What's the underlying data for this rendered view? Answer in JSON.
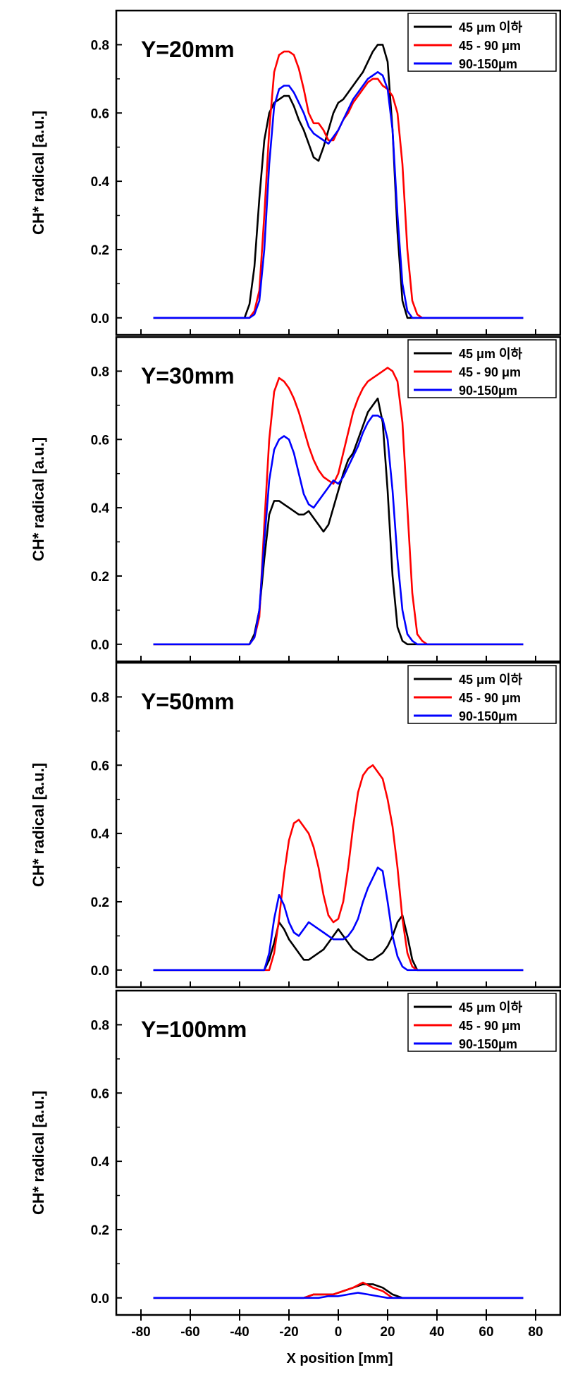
{
  "figure": {
    "xlabel": "X position [mm]",
    "x_ticks": [
      -80,
      -60,
      -40,
      -20,
      0,
      20,
      40,
      60,
      80
    ],
    "xlim": [
      -90,
      90
    ],
    "series_colors": [
      "#000000",
      "#ff0000",
      "#0000ff"
    ]
  },
  "chart_data": [
    {
      "type": "line",
      "title": "Y=20mm",
      "ylabel": "CH* radical [a.u.]",
      "xlim": [
        -90,
        90
      ],
      "ylim": [
        -0.05,
        0.9
      ],
      "y_ticks": [
        "0.0",
        "0.2",
        "0.4",
        "0.6",
        "0.8"
      ],
      "legend": "top-right",
      "series": [
        {
          "name": "45 μm 이하",
          "color": "#000000",
          "x": [
            -75,
            -38,
            -36,
            -34,
            -32,
            -30,
            -28,
            -26,
            -24,
            -22,
            -20,
            -18,
            -16,
            -14,
            -12,
            -10,
            -8,
            -6,
            -4,
            -2,
            0,
            2,
            4,
            6,
            8,
            10,
            12,
            14,
            16,
            18,
            20,
            22,
            24,
            26,
            28,
            30,
            32,
            75
          ],
          "y": [
            0,
            0,
            0.04,
            0.15,
            0.35,
            0.52,
            0.6,
            0.63,
            0.64,
            0.65,
            0.65,
            0.62,
            0.58,
            0.55,
            0.51,
            0.47,
            0.46,
            0.5,
            0.55,
            0.6,
            0.63,
            0.64,
            0.66,
            0.68,
            0.7,
            0.72,
            0.75,
            0.78,
            0.8,
            0.8,
            0.75,
            0.55,
            0.25,
            0.05,
            0,
            0,
            0,
            0
          ]
        },
        {
          "name": "45 - 90 μm",
          "color": "#ff0000",
          "x": [
            -75,
            -38,
            -36,
            -34,
            -32,
            -30,
            -28,
            -26,
            -24,
            -22,
            -20,
            -18,
            -16,
            -14,
            -12,
            -10,
            -8,
            -6,
            -4,
            -2,
            0,
            2,
            4,
            6,
            8,
            10,
            12,
            14,
            16,
            18,
            20,
            22,
            24,
            26,
            28,
            30,
            32,
            34,
            36,
            75
          ],
          "y": [
            0,
            0,
            0,
            0.02,
            0.08,
            0.3,
            0.55,
            0.72,
            0.77,
            0.78,
            0.78,
            0.77,
            0.73,
            0.67,
            0.6,
            0.57,
            0.57,
            0.55,
            0.52,
            0.52,
            0.55,
            0.58,
            0.6,
            0.63,
            0.65,
            0.67,
            0.69,
            0.7,
            0.7,
            0.68,
            0.67,
            0.65,
            0.6,
            0.45,
            0.2,
            0.05,
            0.01,
            0,
            0,
            0
          ]
        },
        {
          "name": "90-150μm",
          "color": "#0000ff",
          "x": [
            -75,
            -38,
            -36,
            -34,
            -32,
            -30,
            -28,
            -26,
            -24,
            -22,
            -20,
            -18,
            -16,
            -14,
            -12,
            -10,
            -8,
            -6,
            -4,
            -2,
            0,
            2,
            4,
            6,
            8,
            10,
            12,
            14,
            16,
            18,
            20,
            22,
            24,
            26,
            28,
            30,
            75
          ],
          "y": [
            0,
            0,
            0,
            0.01,
            0.05,
            0.2,
            0.45,
            0.62,
            0.67,
            0.68,
            0.68,
            0.66,
            0.63,
            0.6,
            0.56,
            0.54,
            0.53,
            0.52,
            0.51,
            0.53,
            0.55,
            0.58,
            0.61,
            0.64,
            0.66,
            0.68,
            0.7,
            0.71,
            0.72,
            0.71,
            0.67,
            0.55,
            0.3,
            0.1,
            0.02,
            0,
            0
          ]
        }
      ]
    },
    {
      "type": "line",
      "title": "Y=30mm",
      "ylabel": "CH* radical [a.u.]",
      "xlim": [
        -90,
        90
      ],
      "ylim": [
        -0.05,
        0.9
      ],
      "y_ticks": [
        "0.0",
        "0.2",
        "0.4",
        "0.6",
        "0.8"
      ],
      "legend": "top-right",
      "series": [
        {
          "name": "45 μm 이하",
          "color": "#000000",
          "x": [
            -75,
            -36,
            -34,
            -32,
            -30,
            -28,
            -26,
            -24,
            -22,
            -20,
            -18,
            -16,
            -14,
            -12,
            -10,
            -8,
            -6,
            -4,
            -2,
            0,
            2,
            4,
            6,
            8,
            10,
            12,
            14,
            16,
            18,
            20,
            22,
            24,
            26,
            28,
            30,
            75
          ],
          "y": [
            0,
            0,
            0.03,
            0.1,
            0.25,
            0.38,
            0.42,
            0.42,
            0.41,
            0.4,
            0.39,
            0.38,
            0.38,
            0.39,
            0.37,
            0.35,
            0.33,
            0.35,
            0.4,
            0.45,
            0.5,
            0.54,
            0.56,
            0.6,
            0.64,
            0.68,
            0.7,
            0.72,
            0.65,
            0.45,
            0.2,
            0.05,
            0.01,
            0,
            0,
            0
          ]
        },
        {
          "name": "45 - 90 μm",
          "color": "#ff0000",
          "x": [
            -75,
            -36,
            -34,
            -32,
            -30,
            -28,
            -26,
            -24,
            -22,
            -20,
            -18,
            -16,
            -14,
            -12,
            -10,
            -8,
            -6,
            -4,
            -2,
            0,
            2,
            4,
            6,
            8,
            10,
            12,
            14,
            16,
            18,
            20,
            22,
            24,
            26,
            28,
            30,
            32,
            34,
            36,
            38,
            75
          ],
          "y": [
            0,
            0,
            0.02,
            0.08,
            0.35,
            0.6,
            0.74,
            0.78,
            0.77,
            0.75,
            0.72,
            0.68,
            0.63,
            0.58,
            0.54,
            0.51,
            0.49,
            0.48,
            0.47,
            0.5,
            0.56,
            0.62,
            0.68,
            0.72,
            0.75,
            0.77,
            0.78,
            0.79,
            0.8,
            0.81,
            0.8,
            0.77,
            0.65,
            0.4,
            0.15,
            0.03,
            0.01,
            0,
            0,
            0
          ]
        },
        {
          "name": "90-150μm",
          "color": "#0000ff",
          "x": [
            -75,
            -36,
            -34,
            -32,
            -30,
            -28,
            -26,
            -24,
            -22,
            -20,
            -18,
            -16,
            -14,
            -12,
            -10,
            -8,
            -6,
            -4,
            -2,
            0,
            2,
            4,
            6,
            8,
            10,
            12,
            14,
            16,
            18,
            20,
            22,
            24,
            26,
            28,
            30,
            32,
            75
          ],
          "y": [
            0,
            0,
            0.02,
            0.1,
            0.3,
            0.48,
            0.57,
            0.6,
            0.61,
            0.6,
            0.56,
            0.5,
            0.44,
            0.41,
            0.4,
            0.42,
            0.44,
            0.46,
            0.48,
            0.47,
            0.49,
            0.52,
            0.55,
            0.58,
            0.62,
            0.65,
            0.67,
            0.67,
            0.66,
            0.6,
            0.45,
            0.25,
            0.1,
            0.03,
            0.01,
            0,
            0
          ]
        }
      ]
    },
    {
      "type": "line",
      "title": "Y=50mm",
      "ylabel": "CH* radical [a.u.]",
      "xlim": [
        -90,
        90
      ],
      "ylim": [
        -0.05,
        0.9
      ],
      "y_ticks": [
        "0.0",
        "0.2",
        "0.4",
        "0.6",
        "0.8"
      ],
      "legend": "top-right",
      "series": [
        {
          "name": "45 μm 이하",
          "color": "#000000",
          "x": [
            -75,
            -30,
            -28,
            -26,
            -24,
            -22,
            -20,
            -18,
            -16,
            -14,
            -12,
            -10,
            -8,
            -6,
            -4,
            -2,
            0,
            2,
            4,
            6,
            8,
            10,
            12,
            14,
            16,
            18,
            20,
            22,
            24,
            26,
            28,
            30,
            32,
            75
          ],
          "y": [
            0,
            0,
            0.03,
            0.08,
            0.14,
            0.12,
            0.09,
            0.07,
            0.05,
            0.03,
            0.03,
            0.04,
            0.05,
            0.06,
            0.08,
            0.1,
            0.12,
            0.1,
            0.08,
            0.06,
            0.05,
            0.04,
            0.03,
            0.03,
            0.04,
            0.05,
            0.07,
            0.1,
            0.14,
            0.16,
            0.1,
            0.03,
            0,
            0
          ]
        },
        {
          "name": "45 - 90 μm",
          "color": "#ff0000",
          "x": [
            -75,
            -28,
            -26,
            -24,
            -22,
            -20,
            -18,
            -16,
            -14,
            -12,
            -10,
            -8,
            -6,
            -4,
            -2,
            0,
            2,
            4,
            6,
            8,
            10,
            12,
            14,
            16,
            18,
            20,
            22,
            24,
            26,
            28,
            30,
            32,
            34,
            75
          ],
          "y": [
            0,
            0,
            0.05,
            0.15,
            0.28,
            0.38,
            0.43,
            0.44,
            0.42,
            0.4,
            0.36,
            0.3,
            0.22,
            0.16,
            0.14,
            0.15,
            0.2,
            0.3,
            0.42,
            0.52,
            0.57,
            0.59,
            0.6,
            0.58,
            0.56,
            0.5,
            0.42,
            0.3,
            0.15,
            0.05,
            0.01,
            0,
            0,
            0
          ]
        },
        {
          "name": "90-150μm",
          "color": "#0000ff",
          "x": [
            -75,
            -30,
            -28,
            -26,
            -24,
            -22,
            -20,
            -18,
            -16,
            -14,
            -12,
            -10,
            -8,
            -6,
            -4,
            -2,
            0,
            2,
            4,
            6,
            8,
            10,
            12,
            14,
            16,
            18,
            20,
            22,
            24,
            26,
            28,
            30,
            75
          ],
          "y": [
            0,
            0,
            0.05,
            0.15,
            0.22,
            0.19,
            0.14,
            0.11,
            0.1,
            0.12,
            0.14,
            0.13,
            0.12,
            0.11,
            0.1,
            0.09,
            0.09,
            0.09,
            0.1,
            0.12,
            0.15,
            0.2,
            0.24,
            0.27,
            0.3,
            0.29,
            0.2,
            0.1,
            0.04,
            0.01,
            0,
            0,
            0
          ]
        }
      ]
    },
    {
      "type": "line",
      "title": "Y=100mm",
      "ylabel": "CH* radical [a.u.]",
      "xlim": [
        -90,
        90
      ],
      "ylim": [
        -0.05,
        0.9
      ],
      "y_ticks": [
        "0.0",
        "0.2",
        "0.4",
        "0.6",
        "0.8"
      ],
      "legend": "top-right",
      "series": [
        {
          "name": "45 μm 이하",
          "color": "#000000",
          "x": [
            -75,
            -14,
            -10,
            -6,
            -2,
            2,
            6,
            10,
            14,
            18,
            22,
            26,
            75
          ],
          "y": [
            0,
            0,
            0.01,
            0.01,
            0.01,
            0.02,
            0.03,
            0.04,
            0.04,
            0.03,
            0.01,
            0,
            0
          ]
        },
        {
          "name": "45 - 90 μm",
          "color": "#ff0000",
          "x": [
            -75,
            -14,
            -10,
            -6,
            -2,
            2,
            6,
            10,
            14,
            18,
            22,
            75
          ],
          "y": [
            0,
            0,
            0.01,
            0.01,
            0.01,
            0.02,
            0.03,
            0.045,
            0.03,
            0.02,
            0,
            0
          ]
        },
        {
          "name": "90-150μm",
          "color": "#0000ff",
          "x": [
            -75,
            -8,
            -4,
            0,
            4,
            8,
            12,
            16,
            20,
            75
          ],
          "y": [
            0,
            0,
            0.005,
            0.005,
            0.01,
            0.015,
            0.01,
            0.005,
            0,
            0
          ]
        }
      ]
    }
  ]
}
